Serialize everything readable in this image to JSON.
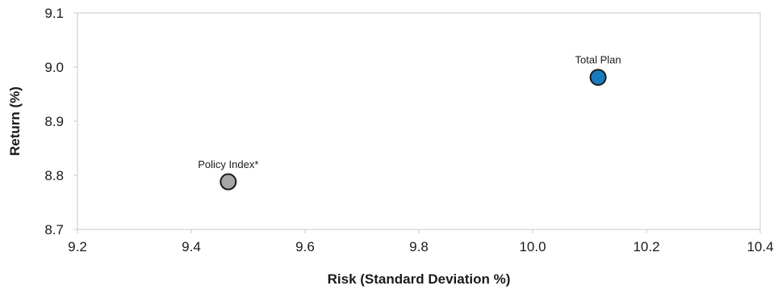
{
  "chart_data": {
    "type": "scatter",
    "title": "",
    "xlabel": "Risk (Standard Deviation %)",
    "ylabel": "Return (%)",
    "xlim": [
      9.2,
      10.4
    ],
    "ylim": [
      8.7,
      9.1
    ],
    "x_ticks": [
      "9.2",
      "9.4",
      "9.6",
      "9.8",
      "10.0",
      "10.2",
      "10.4"
    ],
    "y_ticks": [
      "8.7",
      "8.8",
      "8.9",
      "9.0",
      "9.1"
    ],
    "grid": false,
    "points": [
      {
        "label": "Total Plan",
        "x": 10.115,
        "y": 8.981,
        "color": "#1a7abf"
      },
      {
        "label": "Policy Index*",
        "x": 9.465,
        "y": 8.788,
        "color": "#a6a6a6"
      }
    ]
  }
}
